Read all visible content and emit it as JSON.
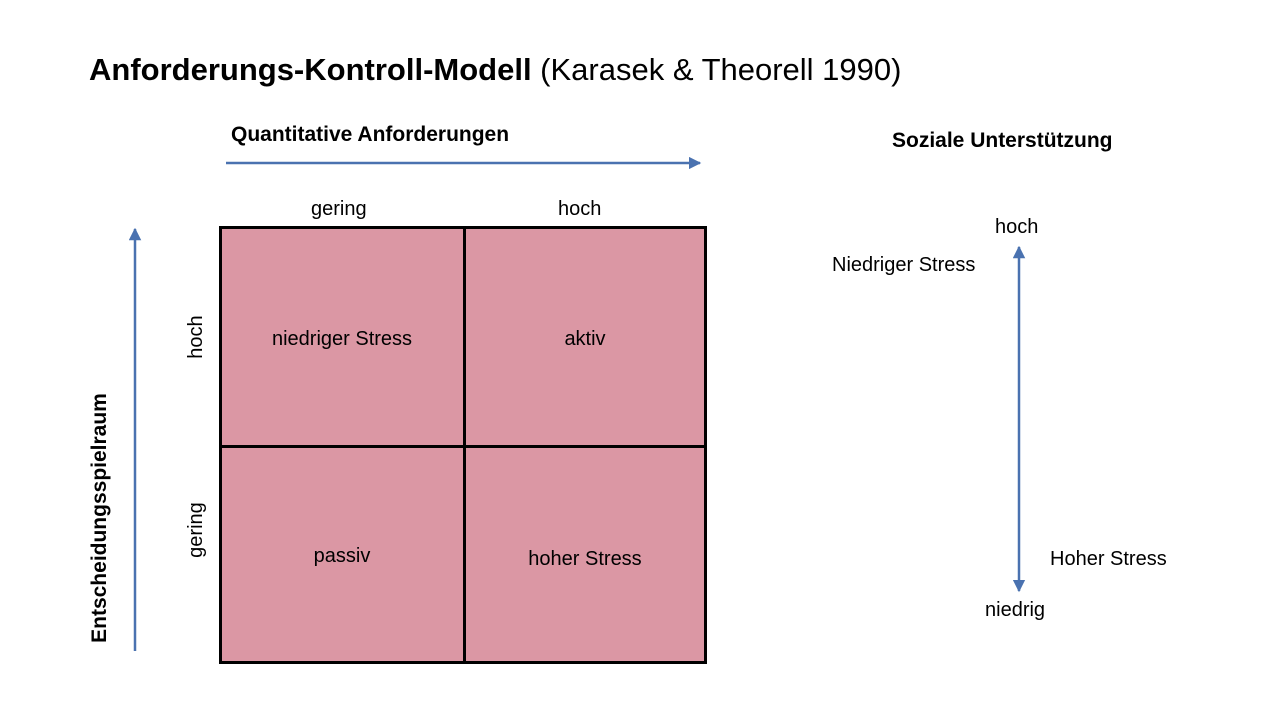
{
  "title": {
    "bold": "Anforderungs-Kontroll-Modell",
    "rest": " (Karasek & Theorell 1990)"
  },
  "x_axis": {
    "title": "Quantitative Anforderungen",
    "columns": [
      "gering",
      "hoch"
    ]
  },
  "y_axis": {
    "title": "Entscheidungsspielraum",
    "rows": [
      "hoch",
      "gering"
    ]
  },
  "matrix": {
    "top_left": "niedriger Stress",
    "top_right": "aktiv",
    "bottom_left": "passiv",
    "bottom_right": "hoher Stress"
  },
  "social_support": {
    "title": "Soziale Unterstützung",
    "high": "hoch",
    "low": "niedrig",
    "low_stress": "Niedriger Stress",
    "high_stress": "Hoher Stress"
  },
  "colors": {
    "cell_fill": "#db97a4",
    "arrow": "#4a72b0",
    "border": "#000000"
  }
}
